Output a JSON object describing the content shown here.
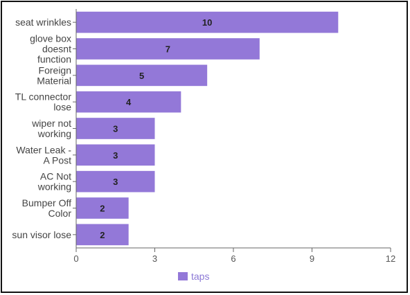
{
  "chart_data": {
    "type": "bar",
    "orientation": "horizontal",
    "categories": [
      "seat wrinkles",
      "glove box doesnt function",
      "Foreign Material",
      "TL connector lose",
      "wiper not working",
      "Water Leak - A Post",
      "AC Not working",
      "Bumper Off Color",
      "sun visor lose"
    ],
    "category_lines": [
      [
        "seat wrinkles"
      ],
      [
        "glove box",
        "doesnt",
        "function"
      ],
      [
        "Foreign",
        "Material"
      ],
      [
        "TL connector",
        "lose"
      ],
      [
        "wiper not",
        "working"
      ],
      [
        "Water Leak -",
        "A Post"
      ],
      [
        "AC Not",
        "working"
      ],
      [
        "Bumper Off",
        "Color"
      ],
      [
        "sun visor lose"
      ]
    ],
    "series": [
      {
        "name": "taps",
        "values": [
          10,
          7,
          5,
          4,
          3,
          3,
          3,
          2,
          2
        ],
        "color": "#9378D8"
      }
    ],
    "xlim": [
      0,
      12
    ],
    "xticks": [
      "0",
      "3",
      "6",
      "9",
      "12"
    ],
    "data_labels": [
      "10",
      "7",
      "5",
      "4",
      "3",
      "3",
      "3",
      "2",
      "2"
    ],
    "legend": {
      "position": "bottom",
      "label": "taps"
    },
    "grid": false,
    "title": "",
    "xlabel": "",
    "ylabel": ""
  }
}
